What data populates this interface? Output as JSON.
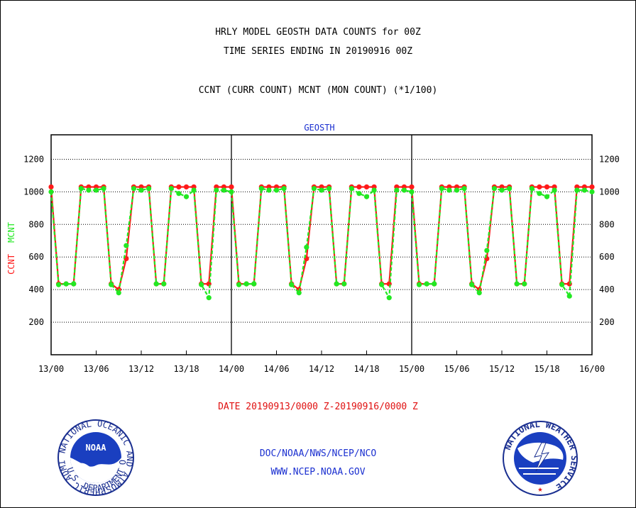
{
  "titles": {
    "line1": "HRLY MODEL GEOSTH DATA COUNTS for 00Z",
    "line2": "TIME SERIES ENDING IN 20190916 00Z",
    "line3": "CCNT (CURR COUNT) MCNT (MON COUNT) (*1/100)"
  },
  "footer": {
    "date_range": "DATE 20190913/0000 Z-20190916/0000 Z",
    "credit_line1": "DOC/NOAA/NWS/NCEP/NCO",
    "credit_line2": "WWW.NCEP.NOAA.GOV"
  },
  "logos": {
    "left": "noaa-logo",
    "right": "national-weather-service-logo",
    "left_ring_text": "NATIONAL OCEANIC AND ATMOSPHERIC ADMINISTRATION",
    "left_bottom_text": "U.S. DEPARTMENT OF COMMERCE",
    "left_center_text": "NOAA",
    "right_ring_text": "NATIONAL WEATHER SERVICE"
  },
  "colors": {
    "ccnt": "#ff1a1a",
    "mcnt": "#22e822",
    "subtitle": "#1a2fd0",
    "date": "#e01010"
  },
  "chart_data": {
    "type": "line",
    "subtitle": "GEOSTH",
    "ylabel_ccnt": "CCNT",
    "ylabel_mcnt": "MCNT",
    "x_unit": "hour",
    "xlim": [
      0,
      72
    ],
    "ylim": [
      0,
      1350
    ],
    "x_tick_values": [
      0,
      6,
      12,
      18,
      24,
      30,
      36,
      42,
      48,
      54,
      60,
      66,
      72
    ],
    "x_tick_labels": [
      "13/00",
      "13/06",
      "13/12",
      "13/18",
      "14/00",
      "14/06",
      "14/12",
      "14/18",
      "15/00",
      "15/06",
      "15/12",
      "15/18",
      "16/00"
    ],
    "y_ticks": [
      200,
      400,
      600,
      800,
      1000,
      1200
    ],
    "day_dividers": [
      24,
      48
    ],
    "grid": "horizontal dotted",
    "series": [
      {
        "name": "CCNT",
        "color": "#ff1a1a",
        "x": [
          0,
          1,
          2,
          3,
          4,
          5,
          6,
          7,
          8,
          9,
          10,
          11,
          12,
          13,
          14,
          15,
          16,
          17,
          18,
          19,
          20,
          21,
          22,
          23,
          24,
          25,
          26,
          27,
          28,
          29,
          30,
          31,
          32,
          33,
          34,
          35,
          36,
          37,
          38,
          39,
          40,
          41,
          42,
          43,
          44,
          45,
          46,
          47,
          48,
          49,
          50,
          51,
          52,
          53,
          54,
          55,
          56,
          57,
          58,
          59,
          60,
          61,
          62,
          63,
          64,
          65,
          66,
          67,
          68,
          69,
          70,
          71,
          72
        ],
        "values": [
          1030,
          435,
          435,
          435,
          1030,
          1030,
          1030,
          1030,
          435,
          400,
          590,
          1030,
          1030,
          1030,
          435,
          435,
          1030,
          1030,
          1030,
          1030,
          435,
          435,
          1030,
          1030,
          1030,
          435,
          435,
          435,
          1030,
          1030,
          1030,
          1030,
          435,
          400,
          590,
          1030,
          1030,
          1030,
          435,
          435,
          1030,
          1030,
          1030,
          1030,
          435,
          435,
          1030,
          1030,
          1030,
          435,
          435,
          435,
          1030,
          1030,
          1030,
          1030,
          435,
          400,
          590,
          1030,
          1030,
          1030,
          435,
          435,
          1030,
          1030,
          1030,
          1030,
          435,
          435,
          1030,
          1030,
          1030
        ]
      },
      {
        "name": "MCNT",
        "color": "#22e822",
        "x": [
          0,
          1,
          2,
          3,
          4,
          5,
          6,
          7,
          8,
          9,
          10,
          11,
          12,
          13,
          14,
          15,
          16,
          17,
          18,
          19,
          20,
          21,
          22,
          23,
          24,
          25,
          26,
          27,
          28,
          29,
          30,
          31,
          32,
          33,
          34,
          35,
          36,
          37,
          38,
          39,
          40,
          41,
          42,
          43,
          44,
          45,
          46,
          47,
          48,
          49,
          50,
          51,
          52,
          53,
          54,
          55,
          56,
          57,
          58,
          59,
          60,
          61,
          62,
          63,
          64,
          65,
          66,
          67,
          68,
          69,
          70,
          71,
          72
        ],
        "values": [
          1000,
          430,
          435,
          435,
          1020,
          1010,
          1010,
          1020,
          430,
          380,
          670,
          1020,
          1010,
          1020,
          435,
          435,
          1020,
          990,
          970,
          1010,
          430,
          350,
          1010,
          1010,
          1000,
          430,
          435,
          435,
          1020,
          1010,
          1010,
          1020,
          430,
          380,
          660,
          1020,
          1010,
          1020,
          435,
          435,
          1020,
          990,
          970,
          1010,
          430,
          350,
          1010,
          1010,
          1000,
          430,
          435,
          435,
          1020,
          1010,
          1010,
          1020,
          430,
          380,
          640,
          1020,
          1010,
          1020,
          435,
          435,
          1020,
          990,
          970,
          1010,
          430,
          360,
          1010,
          1010,
          1000
        ]
      }
    ]
  }
}
